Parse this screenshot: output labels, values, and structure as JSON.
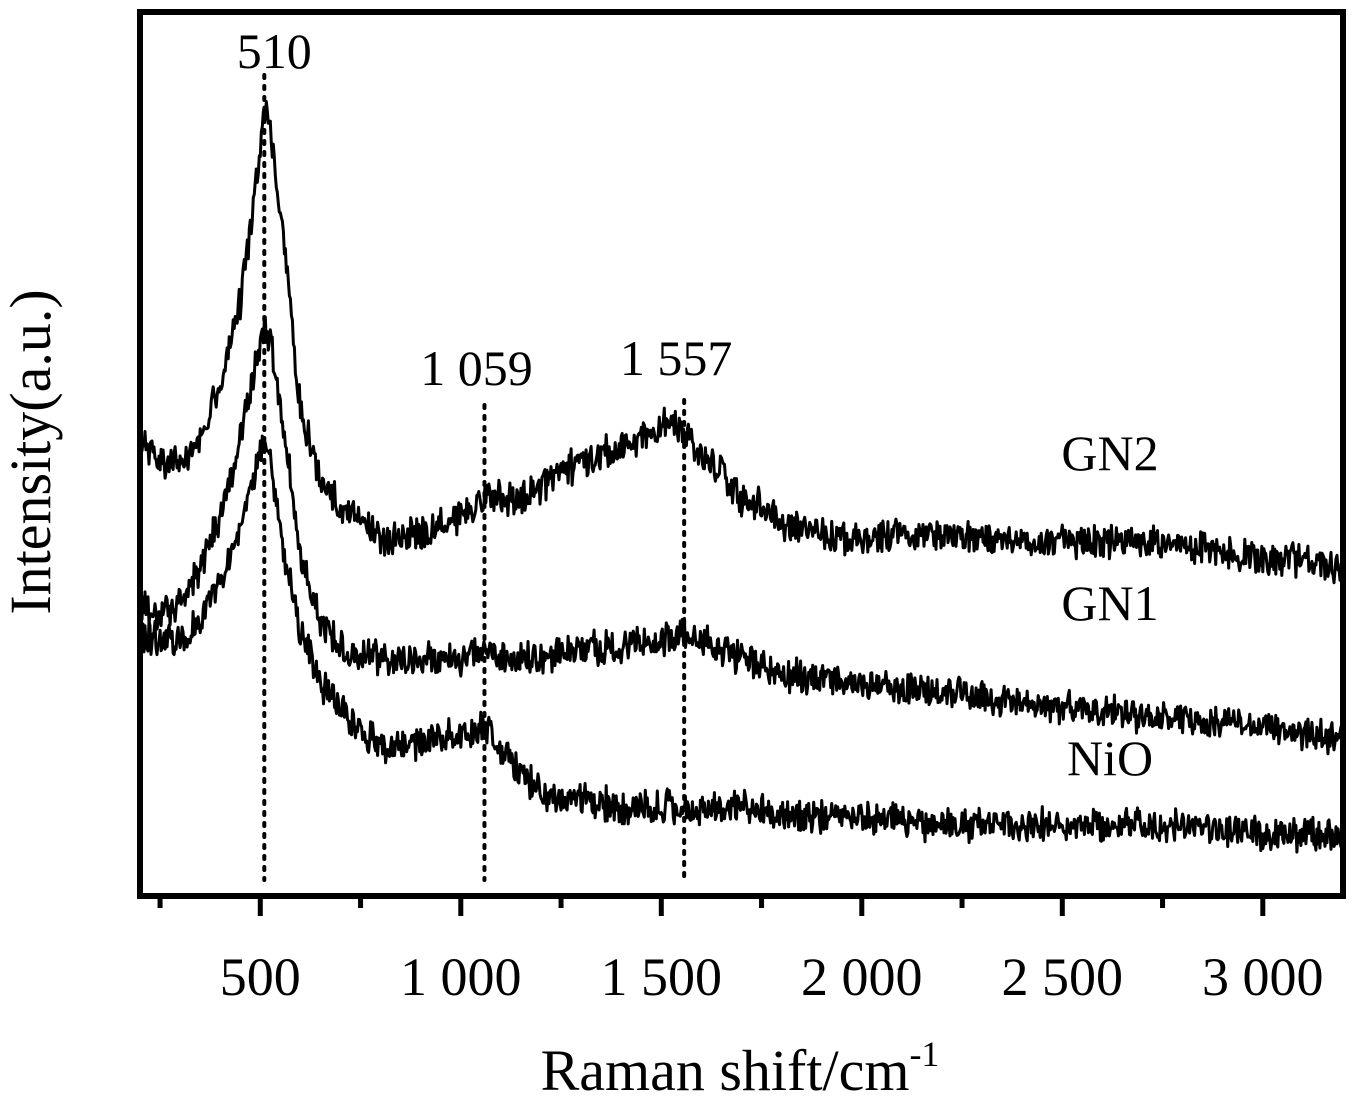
{
  "chart_data": {
    "type": "line",
    "xlabel": "Raman shift/cm",
    "xlabel_superscript": "-1",
    "ylabel": "Intensity(a.u.)",
    "xlim": [
      200,
      3200
    ],
    "ylim": [
      0,
      1
    ],
    "x_ticks": [
      500,
      1000,
      1500,
      2000,
      2500,
      3000
    ],
    "x_tick_labels": [
      "500",
      "1 000",
      "1 500",
      "2 000",
      "2 500",
      "3 000"
    ],
    "x_minor_ticks": [
      250,
      750,
      1250,
      1750,
      2250,
      2750
    ],
    "grid": false,
    "peak_markers": [
      {
        "x": 510,
        "label": "510"
      },
      {
        "x": 1059,
        "label": "1 059"
      },
      {
        "x": 1557,
        "label": "1 557"
      }
    ],
    "series": [
      {
        "name": "GN2",
        "x": [
          200,
          250,
          300,
          350,
          400,
          450,
          500,
          510,
          530,
          560,
          600,
          650,
          700,
          750,
          800,
          850,
          900,
          1000,
          1059,
          1150,
          1250,
          1350,
          1450,
          1500,
          1530,
          1557,
          1600,
          1650,
          1700,
          1750,
          1800,
          1900,
          2000,
          2100,
          2200,
          2400,
          2600,
          2800,
          2900,
          3000,
          3100,
          3200
        ],
        "values": [
          0.52,
          0.49,
          0.49,
          0.52,
          0.58,
          0.67,
          0.85,
          0.89,
          0.85,
          0.74,
          0.55,
          0.47,
          0.44,
          0.43,
          0.4,
          0.41,
          0.41,
          0.43,
          0.45,
          0.45,
          0.48,
          0.5,
          0.52,
          0.53,
          0.54,
          0.52,
          0.5,
          0.48,
          0.45,
          0.44,
          0.42,
          0.41,
          0.4,
          0.41,
          0.41,
          0.4,
          0.4,
          0.4,
          0.39,
          0.38,
          0.38,
          0.37
        ]
      },
      {
        "name": "GN1",
        "x": [
          200,
          250,
          300,
          350,
          400,
          450,
          500,
          510,
          530,
          560,
          600,
          650,
          700,
          750,
          800,
          900,
          1000,
          1059,
          1100,
          1200,
          1300,
          1400,
          1500,
          1557,
          1600,
          1700,
          1800,
          2000,
          2200,
          2400,
          2600,
          2800,
          3000,
          3200
        ],
        "values": [
          0.33,
          0.32,
          0.33,
          0.37,
          0.43,
          0.52,
          0.62,
          0.64,
          0.62,
          0.52,
          0.39,
          0.31,
          0.28,
          0.27,
          0.27,
          0.27,
          0.27,
          0.28,
          0.27,
          0.27,
          0.28,
          0.28,
          0.29,
          0.3,
          0.29,
          0.27,
          0.25,
          0.24,
          0.23,
          0.22,
          0.21,
          0.2,
          0.19,
          0.18
        ]
      },
      {
        "name": "NiO",
        "x": [
          200,
          250,
          300,
          350,
          400,
          450,
          500,
          510,
          530,
          560,
          600,
          650,
          700,
          750,
          800,
          850,
          900,
          950,
          1000,
          1059,
          1100,
          1150,
          1200,
          1250,
          1300,
          1400,
          1500,
          1600,
          1700,
          1800,
          2000,
          2200,
          2400,
          2600,
          2800,
          3000,
          3200
        ],
        "values": [
          0.3,
          0.29,
          0.29,
          0.31,
          0.36,
          0.42,
          0.5,
          0.52,
          0.48,
          0.38,
          0.3,
          0.24,
          0.21,
          0.19,
          0.17,
          0.17,
          0.17,
          0.18,
          0.18,
          0.19,
          0.17,
          0.14,
          0.12,
          0.11,
          0.11,
          0.1,
          0.1,
          0.1,
          0.1,
          0.09,
          0.09,
          0.08,
          0.08,
          0.08,
          0.08,
          0.07,
          0.07
        ]
      }
    ]
  }
}
